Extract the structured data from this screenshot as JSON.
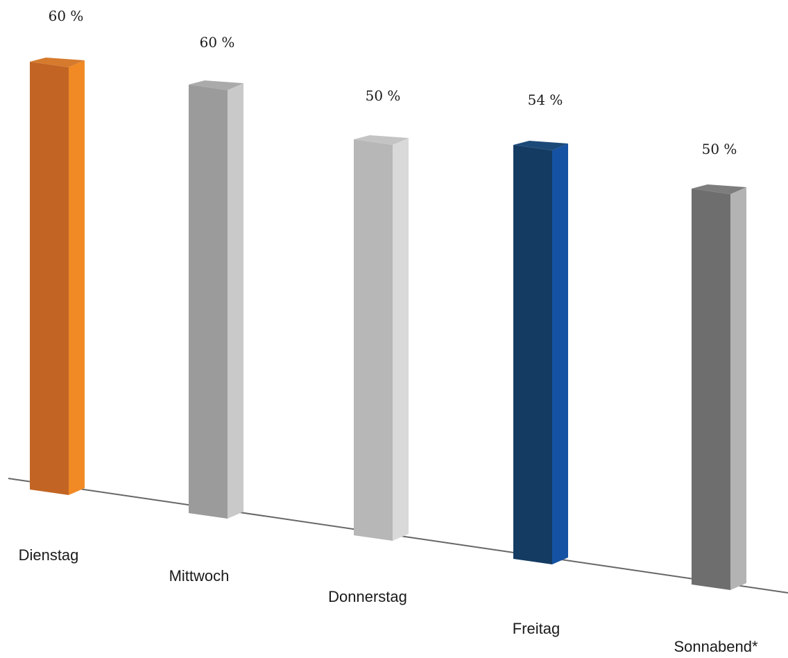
{
  "chart_data": {
    "type": "bar",
    "title": "",
    "xlabel": "",
    "ylabel": "",
    "categories": [
      "Dienstag",
      "Mittwoch",
      "Donnerstag",
      "Freitag",
      "Sonnabend*"
    ],
    "values": [
      60,
      60,
      50,
      54,
      50
    ],
    "data_labels": [
      "60 %",
      "60 %",
      "50 %",
      "54 %",
      "50 %"
    ],
    "unit": "%",
    "grid": false,
    "legend": "none",
    "style": "3d-perspective",
    "colors": {
      "front": [
        "#c26524",
        "#9b9b9b",
        "#b7b7b7",
        "#143b62",
        "#6e6e6e"
      ],
      "side": [
        "#f18a24",
        "#c9c9c9",
        "#d9d9d9",
        "#1552a3",
        "#b3b3b3"
      ],
      "top": [
        "#d67a2e",
        "#aaaaaa",
        "#c4c4c4",
        "#1c4a78",
        "#7d7d7d"
      ],
      "baseline": "#666666"
    }
  }
}
